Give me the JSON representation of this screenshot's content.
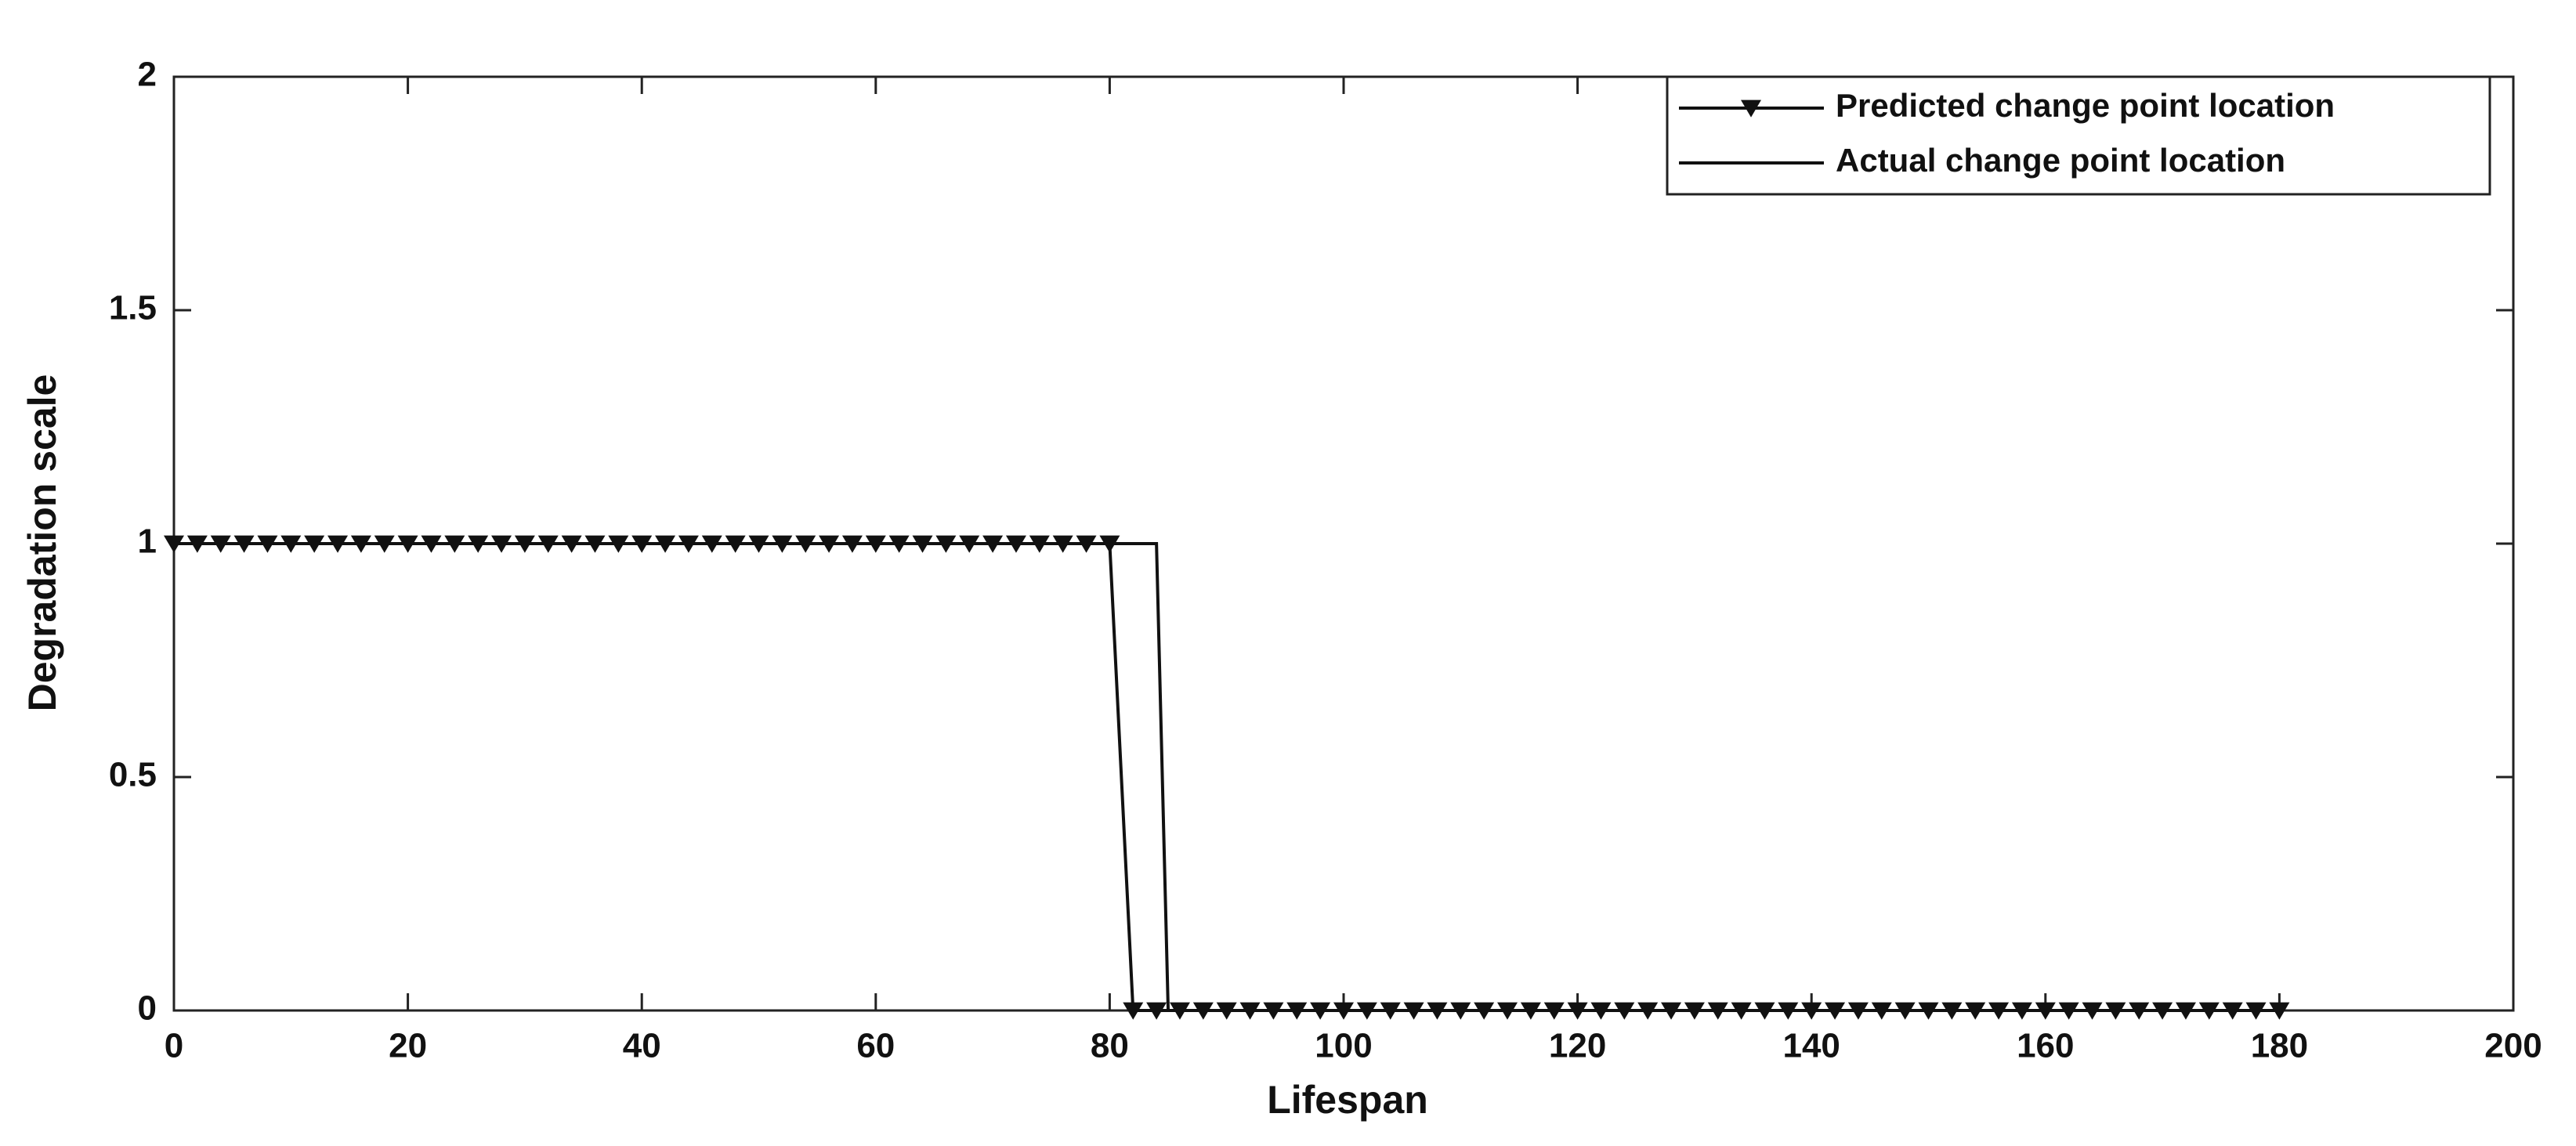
{
  "chart_data": {
    "type": "line",
    "xlabel": "Lifespan",
    "ylabel": "Degradation scale",
    "xlim": [
      0,
      200
    ],
    "xticks": [
      0,
      20,
      40,
      60,
      80,
      100,
      120,
      140,
      160,
      180,
      200
    ],
    "ylim": [
      0,
      2
    ],
    "yticks": [
      0,
      0.5,
      1,
      1.5,
      2
    ],
    "grid": false,
    "legend_position": "upper right",
    "series": [
      {
        "name": "Predicted change point location",
        "color": "#111111",
        "marker": "triangle-down",
        "x": [
          0,
          2,
          4,
          6,
          8,
          10,
          12,
          14,
          16,
          18,
          20,
          22,
          24,
          26,
          28,
          30,
          32,
          34,
          36,
          38,
          40,
          42,
          44,
          46,
          48,
          50,
          52,
          54,
          56,
          58,
          60,
          62,
          64,
          66,
          68,
          70,
          72,
          74,
          76,
          78,
          80,
          82,
          84,
          86,
          88,
          90,
          92,
          94,
          96,
          98,
          100,
          102,
          104,
          106,
          108,
          110,
          112,
          114,
          116,
          118,
          120,
          122,
          124,
          126,
          128,
          130,
          132,
          134,
          136,
          138,
          140,
          142,
          144,
          146,
          148,
          150,
          152,
          154,
          156,
          158,
          160,
          162,
          164,
          166,
          168,
          170,
          172,
          174,
          176,
          178,
          180
        ],
        "values": [
          1,
          1,
          1,
          1,
          1,
          1,
          1,
          1,
          1,
          1,
          1,
          1,
          1,
          1,
          1,
          1,
          1,
          1,
          1,
          1,
          1,
          1,
          1,
          1,
          1,
          1,
          1,
          1,
          1,
          1,
          1,
          1,
          1,
          1,
          1,
          1,
          1,
          1,
          1,
          1,
          1,
          0,
          0,
          0,
          0,
          0,
          0,
          0,
          0,
          0,
          0,
          0,
          0,
          0,
          0,
          0,
          0,
          0,
          0,
          0,
          0,
          0,
          0,
          0,
          0,
          0,
          0,
          0,
          0,
          0,
          0,
          0,
          0,
          0,
          0,
          0,
          0,
          0,
          0,
          0,
          0,
          0,
          0,
          0,
          0,
          0,
          0,
          0,
          0,
          0,
          0
        ]
      },
      {
        "name": "Actual change point location",
        "color": "#111111",
        "marker": "none",
        "x": [
          0,
          84,
          85,
          180
        ],
        "values": [
          1,
          1,
          0,
          0
        ]
      }
    ]
  }
}
